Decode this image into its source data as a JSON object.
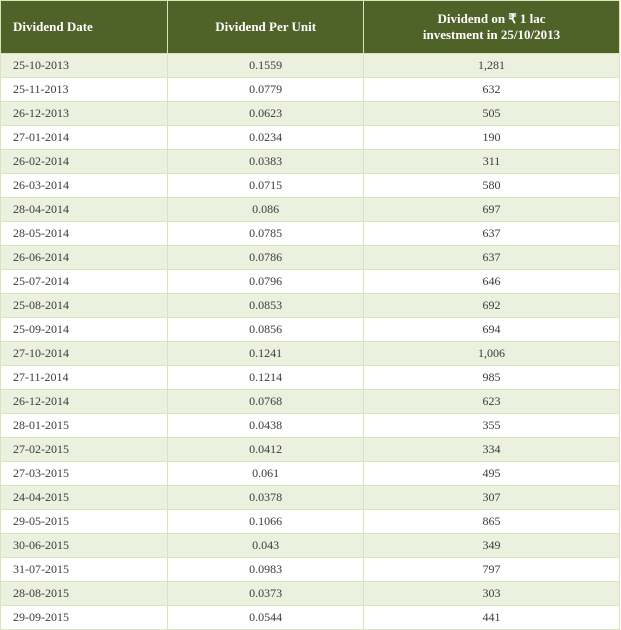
{
  "table": {
    "columns": [
      {
        "label": "Dividend Date"
      },
      {
        "label": "Dividend Per Unit"
      },
      {
        "label_html": "Dividend on ₹ 1 lac investment in 25/10/2013"
      }
    ],
    "header_bg": "#4f6228",
    "header_fg": "#ffffff",
    "row_alt_bg": "#ebf1de",
    "row_bg": "#ffffff",
    "border_color": "#d7e4bc",
    "font_family": "Georgia, serif",
    "header_fontsize": 13,
    "cell_fontsize": 12,
    "rows": [
      [
        "25-10-2013",
        "0.1559",
        "1,281"
      ],
      [
        "25-11-2013",
        "0.0779",
        "632"
      ],
      [
        "26-12-2013",
        "0.0623",
        "505"
      ],
      [
        "27-01-2014",
        "0.0234",
        "190"
      ],
      [
        "26-02-2014",
        "0.0383",
        "311"
      ],
      [
        "26-03-2014",
        "0.0715",
        "580"
      ],
      [
        "28-04-2014",
        "0.086",
        "697"
      ],
      [
        "28-05-2014",
        "0.0785",
        "637"
      ],
      [
        "26-06-2014",
        "0.0786",
        "637"
      ],
      [
        "25-07-2014",
        "0.0796",
        "646"
      ],
      [
        "25-08-2014",
        "0.0853",
        "692"
      ],
      [
        "25-09-2014",
        "0.0856",
        "694"
      ],
      [
        "27-10-2014",
        "0.1241",
        "1,006"
      ],
      [
        "27-11-2014",
        "0.1214",
        "985"
      ],
      [
        "26-12-2014",
        "0.0768",
        "623"
      ],
      [
        "28-01-2015",
        "0.0438",
        "355"
      ],
      [
        "27-02-2015",
        "0.0412",
        "334"
      ],
      [
        "27-03-2015",
        "0.061",
        "495"
      ],
      [
        "24-04-2015",
        "0.0378",
        "307"
      ],
      [
        "29-05-2015",
        "0.1066",
        "865"
      ],
      [
        "30-06-2015",
        "0.043",
        "349"
      ],
      [
        "31-07-2015",
        "0.0983",
        "797"
      ],
      [
        "28-08-2015",
        "0.0373",
        "303"
      ],
      [
        "29-09-2015",
        "0.0544",
        "441"
      ]
    ]
  }
}
